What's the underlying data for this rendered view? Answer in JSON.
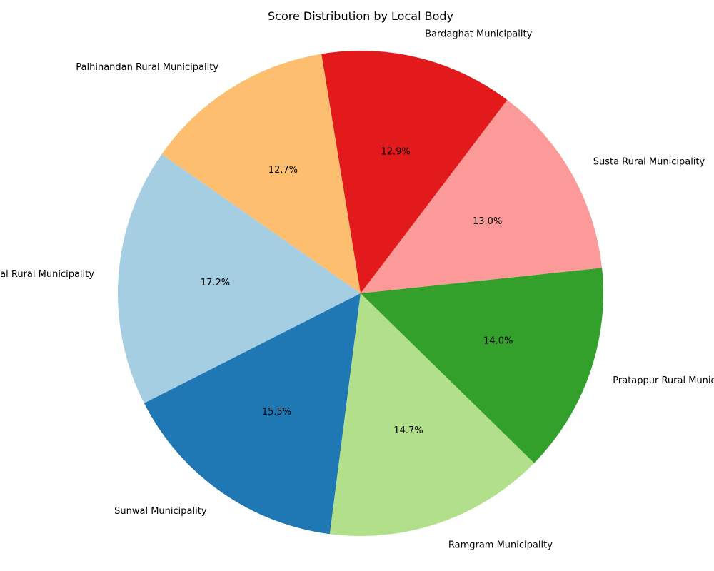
{
  "chart_data": {
    "type": "pie",
    "title": "Score Distribution by Local Body",
    "start_angle_deg": 145,
    "direction": "counterclockwise",
    "slices": [
      {
        "label": "Sarawal Rural Municipality",
        "value": 17.2,
        "display": "17.2%",
        "color": "#a6cee3"
      },
      {
        "label": "Sunwal Municipality",
        "value": 15.5,
        "display": "15.5%",
        "color": "#1f78b4"
      },
      {
        "label": "Ramgram Municipality",
        "value": 14.7,
        "display": "14.7%",
        "color": "#b2df8a"
      },
      {
        "label": "Pratappur Rural Municipality",
        "value": 14.0,
        "display": "14.0%",
        "color": "#33a02c"
      },
      {
        "label": "Susta Rural Municipality",
        "value": 13.0,
        "display": "13.0%",
        "color": "#fb9a99"
      },
      {
        "label": "Bardaghat Municipality",
        "value": 12.9,
        "display": "12.9%",
        "color": "#e31a1c"
      },
      {
        "label": "Palhinandan Rural Municipality",
        "value": 12.7,
        "display": "12.7%",
        "color": "#fdbf6f"
      }
    ]
  }
}
